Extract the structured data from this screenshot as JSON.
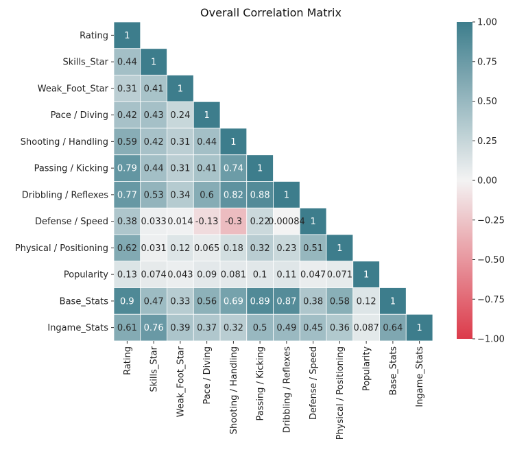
{
  "chart_data": {
    "type": "heatmap",
    "title": "Overall Correlation Matrix",
    "variables": [
      "Rating",
      "Skills_Star",
      "Weak_Foot_Star",
      "Pace / Diving",
      "Shooting / Handling",
      "Passing / Kicking",
      "Dribbling / Reflexes",
      "Defense / Speed",
      "Physical / Positioning",
      "Popularity",
      "Base_Stats",
      "Ingame_Stats"
    ],
    "mask": "upper-triangle",
    "values": [
      [
        1
      ],
      [
        0.44,
        1
      ],
      [
        0.31,
        0.41,
        1
      ],
      [
        0.42,
        0.43,
        0.24,
        1
      ],
      [
        0.59,
        0.42,
        0.31,
        0.44,
        1
      ],
      [
        0.79,
        0.44,
        0.31,
        0.41,
        0.74,
        1
      ],
      [
        0.77,
        0.53,
        0.34,
        0.6,
        0.82,
        0.88,
        1
      ],
      [
        0.38,
        0.033,
        0.014,
        -0.13,
        -0.3,
        0.22,
        0.00084,
        1
      ],
      [
        0.62,
        0.031,
        0.12,
        0.065,
        0.18,
        0.32,
        0.23,
        0.51,
        1
      ],
      [
        0.13,
        0.074,
        0.043,
        0.09,
        0.081,
        0.1,
        0.11,
        0.047,
        0.071,
        1
      ],
      [
        0.9,
        0.47,
        0.33,
        0.56,
        0.69,
        0.89,
        0.87,
        0.38,
        0.58,
        0.12,
        1
      ],
      [
        0.61,
        0.76,
        0.39,
        0.37,
        0.32,
        0.5,
        0.49,
        0.45,
        0.36,
        0.087,
        0.64,
        1
      ]
    ],
    "labels": [
      [
        "1"
      ],
      [
        "0.44",
        "1"
      ],
      [
        "0.31",
        "0.41",
        "1"
      ],
      [
        "0.42",
        "0.43",
        "0.24",
        "1"
      ],
      [
        "0.59",
        "0.42",
        "0.31",
        "0.44",
        "1"
      ],
      [
        "0.79",
        "0.44",
        "0.31",
        "0.41",
        "0.74",
        "1"
      ],
      [
        "0.77",
        "0.53",
        "0.34",
        "0.6",
        "0.82",
        "0.88",
        "1"
      ],
      [
        "0.38",
        "0.033",
        "0.014",
        "-0.13",
        "-0.3",
        "0.22",
        "0.00084",
        "1"
      ],
      [
        "0.62",
        "0.031",
        "0.12",
        "0.065",
        "0.18",
        "0.32",
        "0.23",
        "0.51",
        "1"
      ],
      [
        "0.13",
        "0.074",
        "0.043",
        "0.09",
        "0.081",
        "0.1",
        "0.11",
        "0.047",
        "0.071",
        "1"
      ],
      [
        "0.9",
        "0.47",
        "0.33",
        "0.56",
        "0.69",
        "0.89",
        "0.87",
        "0.38",
        "0.58",
        "0.12",
        "1"
      ],
      [
        "0.61",
        "0.76",
        "0.39",
        "0.37",
        "0.32",
        "0.5",
        "0.49",
        "0.45",
        "0.36",
        "0.087",
        "0.64",
        "1"
      ]
    ],
    "colorbar": {
      "range": [
        -1,
        1
      ],
      "ticks": [
        1,
        0.75,
        0.5,
        0.25,
        0,
        -0.25,
        -0.5,
        -0.75,
        -1
      ],
      "tick_labels": [
        "1.00",
        "0.75",
        "0.50",
        "0.25",
        "0.00",
        "−0.25",
        "−0.50",
        "−0.75",
        "−1.00"
      ],
      "colors": {
        "negative": "#dc3a4a",
        "center": "#f3f3f3",
        "positive": "#3d7d8c"
      }
    },
    "grid": false,
    "legend": "colorbar-right"
  }
}
